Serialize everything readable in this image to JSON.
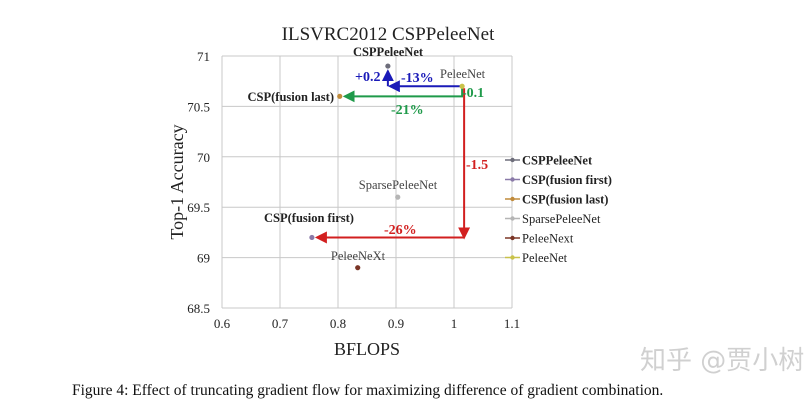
{
  "chart_data": {
    "type": "scatter",
    "title": "ILSVRC2012 CSPPeleeNet",
    "xlabel": "BFLOPS",
    "ylabel": "Top-1 Accuracy",
    "xlim": [
      0.6,
      1.1
    ],
    "ylim": [
      68.5,
      71
    ],
    "xticks": [
      "0.6",
      "0.7",
      "0.8",
      "0.9",
      "1",
      "1.1"
    ],
    "yticks": [
      "68.5",
      "69",
      "69.5",
      "70",
      "70.5",
      "71"
    ],
    "grid": true,
    "legend_position": "right",
    "series": [
      {
        "name": "CSPPeleeNet",
        "x": 0.886,
        "y": 70.9,
        "color": "#6d6d7a",
        "bold": true,
        "label": "CSPPeleeNet"
      },
      {
        "name": "CSP(fusion first)",
        "x": 0.755,
        "y": 69.2,
        "color": "#8a7aa8",
        "bold": true,
        "label": "CSP(fusion first)"
      },
      {
        "name": "CSP(fusion last)",
        "x": 0.803,
        "y": 70.6,
        "color": "#c08a3a",
        "bold": true,
        "label": "CSP(fusion last)"
      },
      {
        "name": "SparsePeleeNet",
        "x": 0.903,
        "y": 69.6,
        "color": "#b5b5b5",
        "bold": false,
        "label": "SparsePeleeNet"
      },
      {
        "name": "PeleeNext",
        "x": null,
        "y": null,
        "color": "#7a3526",
        "bold": false,
        "label": ""
      },
      {
        "name": "PeleeNet",
        "x": 1.014,
        "y": 70.7,
        "color": "#c9c24a",
        "bold": false,
        "label": "PeleeNet"
      }
    ],
    "extra_points": [
      {
        "label": "PeleeNeXt",
        "x": 0.834,
        "y": 68.9,
        "color": "#7a3526"
      }
    ],
    "annotations": [
      {
        "text": "+0.2",
        "color": "#1a1ab8"
      },
      {
        "text": "-13%",
        "color": "#1a1ab8"
      },
      {
        "text": "-0.1",
        "color": "#1f9a4a"
      },
      {
        "text": "-21%",
        "color": "#1f9a4a"
      },
      {
        "text": "-1.5",
        "color": "#d21f1f"
      },
      {
        "text": "-26%",
        "color": "#d21f1f"
      }
    ]
  },
  "caption": "Figure 4: Effect of truncating gradient flow for maximizing difference of gradient combination.",
  "watermark": "知乎 @贾小树"
}
